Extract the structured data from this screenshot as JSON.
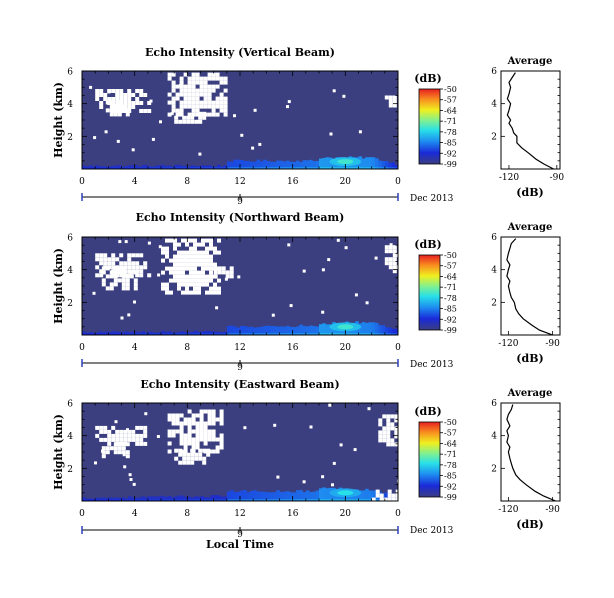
{
  "chart_data": [
    {
      "type": "heatmap",
      "title": "Echo Intensity (Vertical Beam)",
      "ylabel": "Height (km)",
      "xlabel": "",
      "xlim": [
        0,
        24
      ],
      "ylim": [
        0,
        6
      ],
      "x_ticks": [
        "0",
        "4",
        "8",
        "12",
        "16",
        "20",
        "0"
      ],
      "y_ticks": [
        "2",
        "4",
        "6"
      ],
      "date_bar": {
        "day": "9",
        "month": "Dec 2013"
      },
      "colorbar": {
        "label": "(dB)",
        "ticks": [
          "-50",
          "-57",
          "-64",
          "-71",
          "-78",
          "-85",
          "-92",
          "-99"
        ],
        "range": [
          -99,
          -50
        ]
      },
      "field": {
        "background_db": -99,
        "surface_layer": [
          [
            0,
            0.2,
            -95
          ],
          [
            11,
            0.2,
            -93
          ],
          [
            11,
            0.5,
            -90
          ],
          [
            20,
            0.5,
            -86
          ],
          [
            18,
            0.7,
            -84
          ],
          [
            22,
            0.7,
            -85
          ],
          [
            24,
            0.3,
            -93
          ]
        ],
        "hotspot": {
          "x": 20,
          "y": 0.45,
          "db": -80
        },
        "missing_regions": [
          [
            1,
            3.6,
            5,
            4.9
          ],
          [
            1.5,
            3.3,
            3.5,
            4.2
          ],
          [
            6.5,
            3.3,
            11,
            5.9
          ],
          [
            7,
            2.8,
            9.5,
            3.5
          ],
          [
            23,
            3.8,
            24,
            4.5
          ]
        ]
      },
      "average_profile": {
        "title": "Average",
        "xlabel": "(dB)",
        "x_ticks": [
          "-120",
          "-90"
        ],
        "xlim": [
          -125,
          -88
        ],
        "ylim": [
          0,
          6
        ],
        "y_ticks": [
          "2",
          "4",
          "6"
        ],
        "height": [
          0.0,
          0.3,
          0.6,
          1.0,
          1.3,
          1.6,
          2.0,
          2.2,
          2.5,
          2.8,
          3.0,
          3.3,
          3.6,
          4.0,
          4.3,
          4.6,
          5.0,
          5.3,
          5.6,
          5.9
        ],
        "db": [
          -92,
          -98,
          -103,
          -108,
          -112,
          -115,
          -115,
          -117,
          -118,
          -120,
          -119,
          -121,
          -120,
          -119,
          -121,
          -120,
          -119,
          -120,
          -118,
          -116
        ]
      }
    },
    {
      "type": "heatmap",
      "title": "Echo Intensity (Northward Beam)",
      "ylabel": "Height (km)",
      "xlabel": "",
      "xlim": [
        0,
        24
      ],
      "ylim": [
        0,
        6
      ],
      "x_ticks": [
        "0",
        "4",
        "8",
        "12",
        "16",
        "20",
        "0"
      ],
      "y_ticks": [
        "2",
        "4",
        "6"
      ],
      "date_bar": {
        "day": "9",
        "month": "Dec 2013"
      },
      "colorbar": {
        "label": "(dB)",
        "ticks": [
          "-50",
          "-57",
          "-64",
          "-71",
          "-78",
          "-85",
          "-92",
          "-99"
        ],
        "range": [
          -99,
          -50
        ]
      },
      "field": {
        "background_db": -99,
        "surface_layer": [
          [
            0,
            0.2,
            -95
          ],
          [
            11,
            0.2,
            -93
          ],
          [
            11,
            0.5,
            -90
          ],
          [
            20,
            0.6,
            -86
          ],
          [
            18,
            0.7,
            -84
          ],
          [
            22,
            0.8,
            -86
          ],
          [
            24,
            0.3,
            -93
          ]
        ],
        "hotspot": {
          "x": 20,
          "y": 0.5,
          "db": -80
        },
        "missing_regions": [
          [
            1,
            3.6,
            5,
            5.0
          ],
          [
            1.5,
            2.8,
            4,
            4.2
          ],
          [
            6,
            2.5,
            10.5,
            5.9
          ],
          [
            10,
            3.7,
            11.5,
            4.2
          ],
          [
            23,
            3.8,
            24,
            5.5
          ]
        ]
      },
      "average_profile": {
        "title": "Average",
        "xlabel": "(dB)",
        "x_ticks": [
          "-120",
          "-90"
        ],
        "xlim": [
          -125,
          -85
        ],
        "ylim": [
          0,
          6
        ],
        "y_ticks": [
          "2",
          "4",
          "6"
        ],
        "height": [
          0.0,
          0.3,
          0.6,
          1.0,
          1.3,
          1.6,
          2.0,
          2.3,
          2.6,
          3.0,
          3.3,
          3.6,
          4.0,
          4.3,
          4.6,
          5.0,
          5.3,
          5.6,
          5.9
        ],
        "db": [
          -90,
          -99,
          -104,
          -110,
          -113,
          -115,
          -116,
          -118,
          -119,
          -120,
          -119,
          -121,
          -120,
          -119,
          -121,
          -120,
          -119,
          -118,
          -115
        ]
      }
    },
    {
      "type": "heatmap",
      "title": "Echo Intensity (Eastward Beam)",
      "ylabel": "Height (km)",
      "xlabel": "Local Time",
      "xlim": [
        0,
        24
      ],
      "ylim": [
        0,
        6
      ],
      "x_ticks": [
        "0",
        "4",
        "8",
        "12",
        "16",
        "20",
        "0"
      ],
      "y_ticks": [
        "2",
        "4",
        "6"
      ],
      "date_bar": {
        "day": "9",
        "month": "Dec 2013"
      },
      "colorbar": {
        "label": "(dB)",
        "ticks": [
          "-50",
          "-57",
          "-64",
          "-71",
          "-78",
          "-85",
          "-92",
          "-99"
        ],
        "range": [
          -99,
          -50
        ]
      },
      "field": {
        "background_db": -99,
        "surface_layer": [
          [
            0,
            0.2,
            -95
          ],
          [
            11,
            0.3,
            -93
          ],
          [
            11,
            0.6,
            -90
          ],
          [
            20,
            0.6,
            -86
          ],
          [
            18,
            0.8,
            -85
          ],
          [
            22,
            0.7,
            -86
          ],
          [
            24,
            0.3,
            -93
          ]
        ],
        "hotspot": {
          "x": 20,
          "y": 0.5,
          "db": -82
        },
        "missing_regions": [
          [
            1,
            3.4,
            5,
            4.6
          ],
          [
            1.5,
            2.8,
            3.5,
            3.6
          ],
          [
            6.5,
            3.0,
            10.5,
            5.6
          ],
          [
            7,
            2.4,
            9.5,
            3.2
          ],
          [
            22.5,
            3.4,
            24,
            5.3
          ],
          [
            22,
            0.0,
            24,
            0.7
          ]
        ]
      },
      "average_profile": {
        "title": "Average",
        "xlabel": "(dB)",
        "x_ticks": [
          "-120",
          "-90"
        ],
        "xlim": [
          -125,
          -85
        ],
        "ylim": [
          0,
          6
        ],
        "y_ticks": [
          "2",
          "4",
          "6"
        ],
        "height": [
          0.0,
          0.3,
          0.6,
          1.0,
          1.3,
          1.6,
          2.0,
          2.3,
          2.6,
          3.0,
          3.3,
          3.6,
          4.0,
          4.3,
          4.6,
          5.0,
          5.3,
          5.6,
          5.9
        ],
        "db": [
          -88,
          -96,
          -102,
          -108,
          -112,
          -115,
          -117,
          -118,
          -119,
          -120,
          -119,
          -121,
          -120,
          -121,
          -119,
          -121,
          -120,
          -118,
          -117
        ]
      }
    }
  ]
}
